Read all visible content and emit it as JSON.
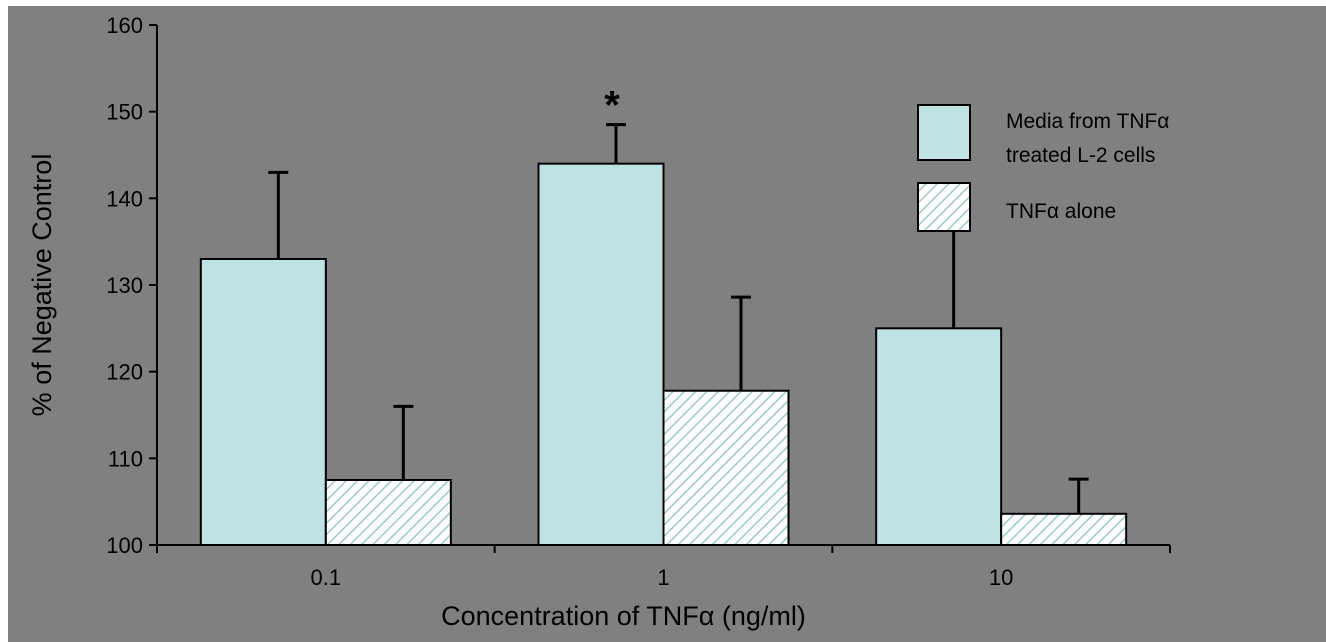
{
  "chart_data": {
    "type": "bar",
    "categories": [
      "0.1",
      "1",
      "10"
    ],
    "series": [
      {
        "name": "Media from TNFα treated L-2 cells",
        "values": [
          133,
          144,
          125
        ],
        "errors": [
          10,
          4.5,
          14
        ],
        "fill": "solid",
        "color": "#bfe3e3"
      },
      {
        "name": "TNFα alone",
        "values": [
          107.5,
          117.8,
          103.6
        ],
        "errors": [
          8.5,
          10.8,
          4.0
        ],
        "fill": "hatched",
        "color": "#bfe3e3"
      }
    ],
    "xlabel": "Concentration of TNFα (ng/ml)",
    "ylabel": "% of Negative Control",
    "ylim": [
      100,
      160
    ],
    "yticks": [
      100,
      110,
      120,
      130,
      140,
      150,
      160
    ],
    "legend": {
      "position": "top-right",
      "entries": [
        "Media from TNFα",
        "treated L-2 cells",
        "TNFα alone"
      ]
    },
    "annotations": [
      {
        "text": "*",
        "category": "1",
        "series": 0
      }
    ],
    "grid": false,
    "background": "#808080"
  }
}
